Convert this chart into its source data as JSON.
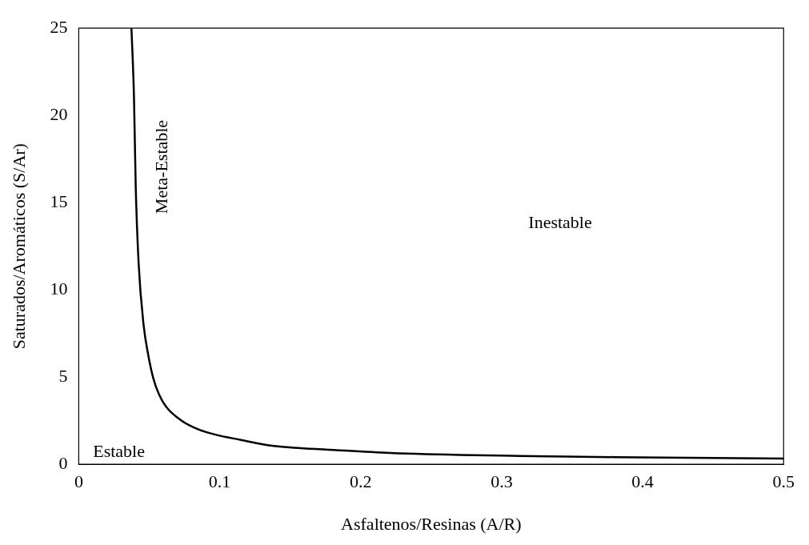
{
  "chart_data": {
    "type": "line",
    "xlabel": "Asfaltenos/Resinas (A/R)",
    "ylabel": "Saturados/Aromáticos (S/Ar)",
    "xlim": [
      0,
      0.5
    ],
    "xticks": [
      0,
      0.1,
      0.2,
      0.3,
      0.4,
      0.5
    ],
    "ylim": [
      0,
      25
    ],
    "yticks": [
      0,
      5,
      10,
      15,
      20,
      25
    ],
    "grid": false,
    "legend": false,
    "marker": "none",
    "line_style": "solid",
    "series": [
      {
        "color": "#000000",
        "x": [
          0.0374,
          0.0392,
          0.0404,
          0.0425,
          0.046,
          0.049,
          0.053,
          0.057,
          0.062,
          0.073,
          0.085,
          0.097,
          0.115,
          0.134,
          0.153,
          0.175,
          0.221,
          0.312,
          0.397,
          0.5
        ],
        "values": [
          25,
          21,
          16,
          11.5,
          8,
          6.4,
          4.9,
          4,
          3.3,
          2.5,
          2,
          1.7,
          1.4,
          1.1,
          0.95,
          0.85,
          0.65,
          0.48,
          0.4,
          0.33
        ]
      }
    ],
    "annotations": [
      "Estable",
      "Meta-Estable",
      "Inestable"
    ]
  }
}
